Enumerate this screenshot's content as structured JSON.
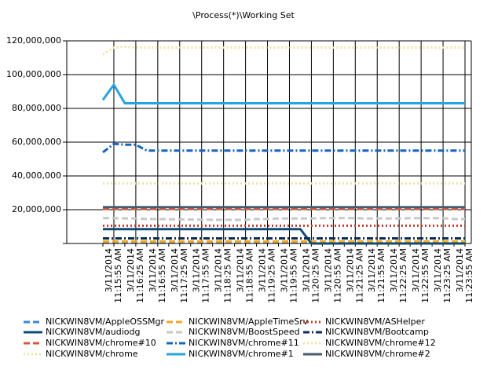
{
  "chart_data": {
    "type": "line",
    "title": "\\Process(*)\\Working Set",
    "categories": [
      null,
      [
        "3/11/2014",
        "11:15:55 AM"
      ],
      null,
      [
        "3/11/2014",
        "11:16:25 AM"
      ],
      null,
      [
        "3/11/2014",
        "11:16:55 AM"
      ],
      null,
      [
        "3/11/2014",
        "11:17:25 AM"
      ],
      null,
      [
        "3/11/2014",
        "11:17:55 AM"
      ],
      null,
      [
        "3/11/2014",
        "11:18:25 AM"
      ],
      null,
      [
        "3/11/2014",
        "11:18:55 AM"
      ],
      null,
      [
        "3/11/2014",
        "11:19:25 AM"
      ],
      null,
      [
        "3/11/2014",
        "11:19:55 AM"
      ],
      null,
      [
        "3/11/2014",
        "11:20:25 AM"
      ],
      null,
      [
        "3/11/2014",
        "11:20:55 AM"
      ],
      null,
      [
        "3/11/2014",
        "11:21:25 AM"
      ],
      null,
      [
        "3/11/2014",
        "11:21:55 AM"
      ],
      null,
      [
        "3/11/2014",
        "11:22:25 AM"
      ],
      null,
      [
        "3/11/2014",
        "11:22:55 AM"
      ],
      null,
      [
        "3/11/2014",
        "11:23:25 AM"
      ],
      null,
      [
        "3/11/2014",
        "11:23:55 AM"
      ]
    ],
    "ylim": [
      0,
      120000000
    ],
    "yticks": [
      {
        "value": 0,
        "label": ""
      },
      {
        "value": 20000000,
        "label": "20,000,000"
      },
      {
        "value": 40000000,
        "label": "40,000,000"
      },
      {
        "value": 60000000,
        "label": "60,000,000"
      },
      {
        "value": 80000000,
        "label": "80,000,000"
      },
      {
        "value": 100000000,
        "label": "100,000,000"
      },
      {
        "value": 120000000,
        "label": "120,000,000"
      }
    ],
    "grid": true,
    "series": [
      {
        "name": "NICKWIN8VM/AppleOSSMgr",
        "color": "#3a86d8",
        "style": "dashed",
        "values": [
          1000000,
          1000000,
          1000000,
          1000000,
          1000000,
          1000000,
          1000000,
          1000000,
          1000000,
          1000000,
          1000000,
          1000000,
          1000000,
          1000000,
          1000000,
          1000000,
          1000000,
          1000000,
          1000000,
          1000000,
          1000000,
          1000000,
          1000000,
          1000000,
          1000000,
          1000000,
          1000000,
          1000000,
          1000000,
          1000000,
          1000000,
          1000000,
          1000000,
          1000000
        ]
      },
      {
        "name": "NICKWIN8VM/AppleTimeSrv",
        "color": "#f5a623",
        "style": "dashed",
        "values": [
          1200000,
          1200000,
          1200000,
          1200000,
          1200000,
          1200000,
          1200000,
          1200000,
          1200000,
          1200000,
          1200000,
          1200000,
          1200000,
          1200000,
          1200000,
          1200000,
          1200000,
          1200000,
          1200000,
          1200000,
          1200000,
          1200000,
          1200000,
          1200000,
          1200000,
          1200000,
          1200000,
          1200000,
          1200000,
          1200000,
          1200000,
          1200000,
          1200000,
          1200000
        ]
      },
      {
        "name": "NICKWIN8VM/ASHelper",
        "color": "#c0392b",
        "style": "dotted",
        "values": [
          10500000,
          10500000,
          10500000,
          10500000,
          10500000,
          10500000,
          10500000,
          10500000,
          10500000,
          10500000,
          10500000,
          10500000,
          10500000,
          10500000,
          10500000,
          10500000,
          10500000,
          10500000,
          10500000,
          10500000,
          10500000,
          10500000,
          10500000,
          10500000,
          10500000,
          10500000,
          10500000,
          10500000,
          10500000,
          10500000,
          10500000,
          10500000,
          10500000,
          10500000
        ]
      },
      {
        "name": "NICKWIN8VM/audiodg",
        "color": "#0f4c75",
        "style": "solid",
        "values": [
          8500000,
          8500000,
          8500000,
          8500000,
          8500000,
          8500000,
          8500000,
          8500000,
          8500000,
          8500000,
          8500000,
          8500000,
          8500000,
          8500000,
          8500000,
          8500000,
          8500000,
          8500000,
          8500000,
          0,
          0,
          0,
          0,
          0,
          0,
          0,
          0,
          0,
          0,
          0,
          0,
          0,
          0,
          0
        ]
      },
      {
        "name": "NICKWIN8VM/BoostSpeed",
        "color": "#c8c8c8",
        "style": "dashed",
        "values": [
          15000000,
          15000000,
          14800000,
          14800000,
          14500000,
          14500000,
          14300000,
          14300000,
          14200000,
          14200000,
          14000000,
          14000000,
          14000000,
          14000000,
          14500000,
          14500000,
          14800000,
          14800000,
          14800000,
          14800000,
          15000000,
          15000000,
          15000000,
          15000000,
          14800000,
          14800000,
          14800000,
          14800000,
          15000000,
          15000000,
          15000000,
          15000000,
          14500000,
          14500000
        ]
      },
      {
        "name": "NICKWIN8VM/Bootcamp",
        "color": "#0b2e59",
        "style": "dashdot",
        "values": [
          3000000,
          3000000,
          3000000,
          3000000,
          3000000,
          3000000,
          3000000,
          3000000,
          3000000,
          3000000,
          3000000,
          3000000,
          3000000,
          3000000,
          3000000,
          3000000,
          3000000,
          3000000,
          3000000,
          3000000,
          3000000,
          3000000,
          3000000,
          3000000,
          3000000,
          3000000,
          3000000,
          3000000,
          3000000,
          3000000,
          3000000,
          3000000,
          3000000,
          3000000
        ]
      },
      {
        "name": "NICKWIN8VM/chrome#10",
        "color": "#d9573b",
        "style": "dashed",
        "values": [
          20500000,
          20500000,
          20500000,
          20500000,
          20500000,
          20500000,
          20500000,
          20500000,
          20500000,
          20500000,
          20500000,
          20500000,
          20500000,
          20500000,
          20500000,
          20500000,
          20500000,
          20500000,
          20500000,
          20500000,
          20500000,
          20500000,
          20500000,
          20500000,
          20500000,
          20500000,
          20500000,
          20500000,
          20500000,
          20500000,
          20500000,
          20500000,
          20500000,
          20500000
        ]
      },
      {
        "name": "NICKWIN8VM/chrome#11",
        "color": "#1565c0",
        "style": "dashdot",
        "values": [
          54000000,
          59000000,
          58500000,
          58500000,
          55000000,
          55000000,
          55000000,
          55000000,
          55000000,
          55000000,
          55000000,
          55000000,
          55000000,
          55000000,
          55000000,
          55000000,
          55000000,
          55000000,
          55000000,
          55000000,
          55000000,
          55000000,
          55000000,
          55000000,
          55000000,
          55000000,
          55000000,
          55000000,
          55000000,
          55000000,
          55000000,
          55000000,
          55000000,
          55000000
        ]
      },
      {
        "name": "NICKWIN8VM/chrome#12",
        "color": "#f3e3a0",
        "style": "dotted",
        "values": [
          112000000,
          116000000,
          116500000,
          116000000,
          116000000,
          116000000,
          116000000,
          116000000,
          116000000,
          116000000,
          116000000,
          116000000,
          116000000,
          116000000,
          116000000,
          116000000,
          116000000,
          116000000,
          116000000,
          116000000,
          116000000,
          116000000,
          116000000,
          116000000,
          116000000,
          116000000,
          116000000,
          116000000,
          116000000,
          116000000,
          116000000,
          116000000,
          116000000,
          116000000
        ]
      },
      {
        "name": "NICKWIN8VM/chrome",
        "color": "#f0e2a4",
        "style": "dotted",
        "values": [
          35500000,
          35500000,
          35500000,
          35500000,
          35500000,
          35500000,
          35500000,
          35500000,
          35500000,
          35500000,
          35500000,
          35500000,
          35500000,
          35500000,
          35500000,
          35500000,
          35500000,
          35500000,
          35500000,
          35500000,
          35500000,
          35500000,
          35500000,
          35500000,
          35500000,
          35500000,
          35500000,
          35500000,
          35500000,
          35500000,
          35500000,
          35500000,
          35500000,
          35500000
        ]
      },
      {
        "name": "NICKWIN8VM/chrome#1",
        "color": "#29a3e0",
        "style": "solid",
        "values": [
          85000000,
          94000000,
          83000000,
          83000000,
          83000000,
          83000000,
          83000000,
          83000000,
          83000000,
          83000000,
          83000000,
          83000000,
          83000000,
          83000000,
          83000000,
          83000000,
          83000000,
          83000000,
          83000000,
          83000000,
          83000000,
          83000000,
          83000000,
          83000000,
          83000000,
          83000000,
          83000000,
          83000000,
          83000000,
          83000000,
          83000000,
          83000000,
          83000000,
          83000000
        ]
      },
      {
        "name": "NICKWIN8VM/chrome#2",
        "color": "#4a5a70",
        "style": "solid",
        "values": [
          21500000,
          21500000,
          21500000,
          21500000,
          21500000,
          21500000,
          21500000,
          21500000,
          21500000,
          21500000,
          21500000,
          21500000,
          21500000,
          21500000,
          21500000,
          21500000,
          21500000,
          21500000,
          21500000,
          21500000,
          21500000,
          21500000,
          21500000,
          21500000,
          21500000,
          21500000,
          21500000,
          21500000,
          21500000,
          21500000,
          21500000,
          21500000,
          21500000,
          21500000
        ]
      }
    ]
  }
}
